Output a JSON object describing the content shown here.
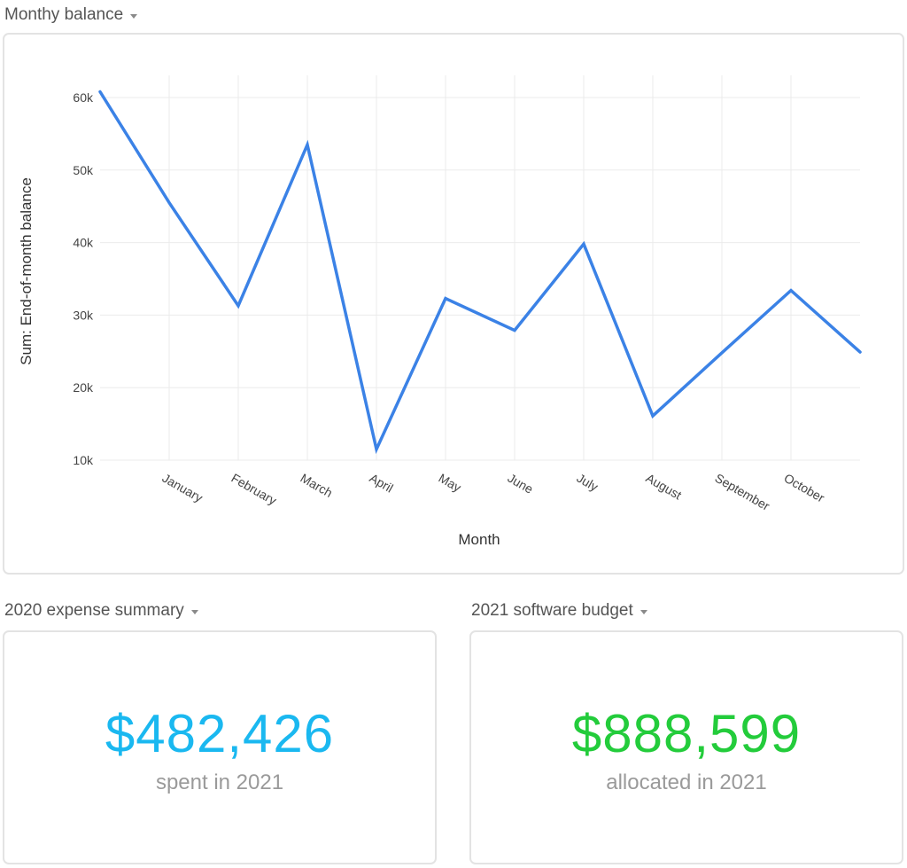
{
  "widgets": {
    "chart": {
      "title": "Monthy balance"
    },
    "kpi1": {
      "title": "2020 expense summary",
      "value": "$482,426",
      "caption": "spent in 2021",
      "color": "#1ab8f0"
    },
    "kpi2": {
      "title": "2021 software budget",
      "value": "$888,599",
      "caption": "allocated in 2021",
      "color": "#23cc3b"
    }
  },
  "colors": {
    "line": "#3b82e6",
    "grid": "#ebebeb",
    "border": "#e3e3e3"
  },
  "icons": {
    "dropdown": "chevron-down-icon"
  },
  "chart_data": {
    "type": "line",
    "title": "Monthy balance",
    "xlabel": "Month",
    "ylabel": "Sum: End-of-month balance",
    "categories": [
      "January",
      "February",
      "March",
      "April",
      "May",
      "June",
      "July",
      "August",
      "September",
      "October"
    ],
    "x": [
      -1,
      0,
      1,
      2,
      3,
      4,
      5,
      6,
      7,
      8,
      9,
      10
    ],
    "values": [
      60800,
      45500,
      31300,
      53500,
      11500,
      32300,
      27900,
      39800,
      16100,
      24800,
      33400,
      24900
    ],
    "yticks": [
      10000,
      20000,
      30000,
      40000,
      50000,
      60000
    ],
    "ytick_labels": [
      "10k",
      "20k",
      "30k",
      "40k",
      "50k",
      "60k"
    ],
    "ylim": [
      10000,
      60000
    ],
    "xlim": [
      -1,
      10
    ],
    "grid": true,
    "legend": "none"
  }
}
